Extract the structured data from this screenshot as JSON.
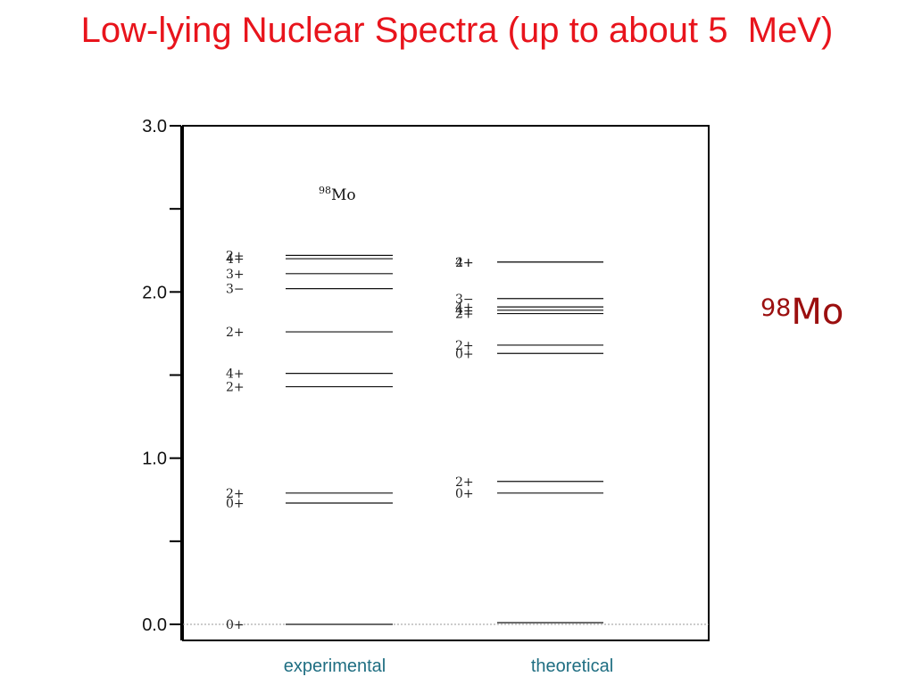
{
  "slide": {
    "title": "Low-lying Nuclear Spectra (up to about 5  MeV)",
    "side_label": {
      "superscript": "98",
      "text": "Mo"
    }
  },
  "chart_data": {
    "type": "level_scheme",
    "title": {
      "superscript": "98",
      "text": "Mo"
    },
    "ylim": [
      0,
      3.0
    ],
    "y_ticks": [
      "0.0",
      "1.0",
      "2.0",
      "3.0"
    ],
    "grid": false,
    "reference_line_at_zero": true,
    "series": [
      {
        "column_label": "experimental",
        "levels": [
          {
            "energy": 0.0,
            "label": "0+"
          },
          {
            "energy": 0.73,
            "label": "0+"
          },
          {
            "energy": 0.79,
            "label": "2+"
          },
          {
            "energy": 1.43,
            "label": "2+"
          },
          {
            "energy": 1.51,
            "label": "4+"
          },
          {
            "energy": 1.76,
            "label": "2+"
          },
          {
            "energy": 2.02,
            "label": "3−"
          },
          {
            "energy": 2.11,
            "label": "3+"
          },
          {
            "energy": 2.2,
            "label": "4+"
          },
          {
            "energy": 2.22,
            "label": "2+"
          }
        ]
      },
      {
        "column_label": "theoretical",
        "levels": [
          {
            "energy": 0.01,
            "label": ""
          },
          {
            "energy": 0.79,
            "label": "0+"
          },
          {
            "energy": 0.86,
            "label": "2+"
          },
          {
            "energy": 1.63,
            "label": "0+"
          },
          {
            "energy": 1.68,
            "label": "2+"
          },
          {
            "energy": 1.87,
            "label": "2+"
          },
          {
            "energy": 1.89,
            "label": "4+"
          },
          {
            "energy": 1.91,
            "label": "4+"
          },
          {
            "energy": 1.96,
            "label": "3−"
          },
          {
            "energy": 2.18,
            "label": "2+"
          },
          {
            "energy": 2.18,
            "label": "4+"
          }
        ]
      }
    ]
  }
}
